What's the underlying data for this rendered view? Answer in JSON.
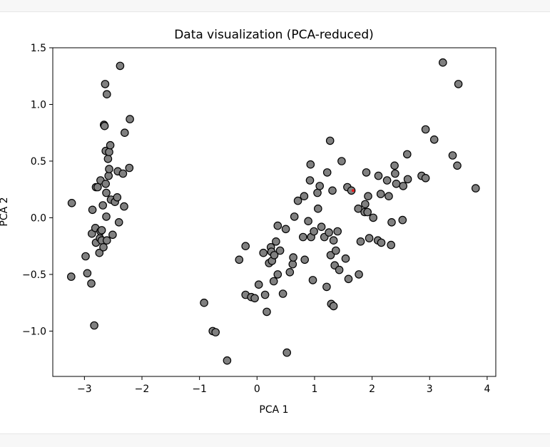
{
  "chart_data": {
    "type": "scatter",
    "title": "Data visualization (PCA-reduced)",
    "xlabel": "PCA 1",
    "ylabel": "PCA 2",
    "xlim": [
      -3.55,
      4.15
    ],
    "ylim": [
      -1.4,
      1.5
    ],
    "xticks": [
      "−3",
      "−2",
      "−1",
      "0",
      "1",
      "2",
      "3",
      "4"
    ],
    "xtick_values": [
      -3,
      -2,
      -1,
      0,
      1,
      2,
      3,
      4
    ],
    "yticks": [
      "−1.0",
      "−0.5",
      "0.0",
      "0.5",
      "1.0",
      "1.5"
    ],
    "ytick_values": [
      -1.0,
      -0.5,
      0.0,
      0.5,
      1.0,
      1.5
    ],
    "grid": false,
    "marker_fill": "#808080",
    "marker_edge": "#000000",
    "highlight_color": "#e41a1c",
    "highlight_point": [
      1.67,
      0.24
    ],
    "points": [
      [
        -3.22,
        0.13
      ],
      [
        -3.23,
        -0.52
      ],
      [
        -2.98,
        -0.34
      ],
      [
        -2.95,
        -0.49
      ],
      [
        -2.88,
        -0.58
      ],
      [
        -2.86,
        0.07
      ],
      [
        -2.83,
        -0.95
      ],
      [
        -2.87,
        -0.14
      ],
      [
        -2.81,
        -0.09
      ],
      [
        -2.8,
        0.27
      ],
      [
        -2.77,
        0.27
      ],
      [
        -2.8,
        -0.22
      ],
      [
        -2.74,
        -0.31
      ],
      [
        -2.73,
        -0.18
      ],
      [
        -2.72,
        -0.12
      ],
      [
        -2.72,
        0.33
      ],
      [
        -2.7,
        -0.2
      ],
      [
        -2.7,
        -0.11
      ],
      [
        -2.68,
        0.11
      ],
      [
        -2.67,
        -0.26
      ],
      [
        -2.66,
        0.82
      ],
      [
        -2.65,
        0.81
      ],
      [
        -2.64,
        1.18
      ],
      [
        -2.63,
        0.59
      ],
      [
        -2.63,
        0.3
      ],
      [
        -2.62,
        0.01
      ],
      [
        -2.62,
        0.22
      ],
      [
        -2.61,
        1.09
      ],
      [
        -2.61,
        -0.2
      ],
      [
        -2.59,
        0.52
      ],
      [
        -2.58,
        0.37
      ],
      [
        -2.57,
        0.58
      ],
      [
        -2.57,
        0.43
      ],
      [
        -2.55,
        0.64
      ],
      [
        -2.54,
        0.16
      ],
      [
        -2.51,
        -0.15
      ],
      [
        -2.47,
        0.14
      ],
      [
        -2.43,
        0.18
      ],
      [
        -2.42,
        0.41
      ],
      [
        -2.4,
        -0.04
      ],
      [
        -2.38,
        1.34
      ],
      [
        -2.33,
        0.39
      ],
      [
        -2.31,
        0.1
      ],
      [
        -2.3,
        0.75
      ],
      [
        -2.22,
        0.44
      ],
      [
        -2.21,
        0.87
      ],
      [
        -0.92,
        -0.75
      ],
      [
        -0.77,
        -1.0
      ],
      [
        -0.72,
        -1.01
      ],
      [
        -0.52,
        -1.26
      ],
      [
        -0.31,
        -0.37
      ],
      [
        -0.2,
        -0.68
      ],
      [
        -0.2,
        -0.25
      ],
      [
        -0.1,
        -0.7
      ],
      [
        -0.04,
        -0.71
      ],
      [
        0.03,
        -0.59
      ],
      [
        0.11,
        -0.31
      ],
      [
        0.14,
        -0.68
      ],
      [
        0.17,
        -0.83
      ],
      [
        0.21,
        -0.4
      ],
      [
        0.24,
        -0.26
      ],
      [
        0.25,
        -0.3
      ],
      [
        0.26,
        -0.38
      ],
      [
        0.29,
        -0.56
      ],
      [
        0.3,
        -0.33
      ],
      [
        0.33,
        -0.21
      ],
      [
        0.36,
        -0.5
      ],
      [
        0.36,
        -0.07
      ],
      [
        0.4,
        -0.29
      ],
      [
        0.45,
        -0.67
      ],
      [
        0.5,
        -0.1
      ],
      [
        0.52,
        -1.19
      ],
      [
        0.57,
        -0.48
      ],
      [
        0.62,
        -0.41
      ],
      [
        0.63,
        -0.35
      ],
      [
        0.65,
        0.01
      ],
      [
        0.71,
        0.15
      ],
      [
        0.8,
        -0.17
      ],
      [
        0.82,
        0.19
      ],
      [
        0.83,
        -0.37
      ],
      [
        0.89,
        -0.03
      ],
      [
        0.92,
        0.33
      ],
      [
        0.93,
        0.47
      ],
      [
        0.94,
        -0.17
      ],
      [
        0.97,
        -0.55
      ],
      [
        0.99,
        -0.12
      ],
      [
        1.05,
        0.22
      ],
      [
        1.06,
        0.08
      ],
      [
        1.09,
        0.28
      ],
      [
        1.12,
        -0.08
      ],
      [
        1.17,
        -0.17
      ],
      [
        1.21,
        -0.61
      ],
      [
        1.22,
        0.4
      ],
      [
        1.25,
        -0.13
      ],
      [
        1.27,
        0.68
      ],
      [
        1.28,
        -0.33
      ],
      [
        1.29,
        -0.76
      ],
      [
        1.31,
        0.24
      ],
      [
        1.33,
        -0.2
      ],
      [
        1.33,
        -0.78
      ],
      [
        1.35,
        -0.42
      ],
      [
        1.37,
        -0.29
      ],
      [
        1.4,
        -0.12
      ],
      [
        1.43,
        -0.46
      ],
      [
        1.47,
        0.5
      ],
      [
        1.54,
        -0.36
      ],
      [
        1.57,
        0.27
      ],
      [
        1.59,
        -0.54
      ],
      [
        1.64,
        0.24
      ],
      [
        1.76,
        0.08
      ],
      [
        1.77,
        -0.5
      ],
      [
        1.8,
        -0.21
      ],
      [
        1.87,
        0.05
      ],
      [
        1.88,
        0.12
      ],
      [
        1.9,
        0.4
      ],
      [
        1.92,
        0.05
      ],
      [
        1.93,
        0.19
      ],
      [
        1.95,
        -0.18
      ],
      [
        2.02,
        0.0
      ],
      [
        2.1,
        -0.2
      ],
      [
        2.11,
        0.37
      ],
      [
        2.15,
        0.21
      ],
      [
        2.16,
        -0.22
      ],
      [
        2.26,
        0.33
      ],
      [
        2.29,
        0.19
      ],
      [
        2.33,
        -0.24
      ],
      [
        2.34,
        -0.04
      ],
      [
        2.39,
        0.46
      ],
      [
        2.4,
        0.39
      ],
      [
        2.42,
        0.3
      ],
      [
        2.54,
        0.28
      ],
      [
        2.53,
        -0.02
      ],
      [
        2.61,
        0.56
      ],
      [
        2.62,
        0.34
      ],
      [
        2.86,
        0.37
      ],
      [
        2.93,
        0.35
      ],
      [
        2.93,
        0.78
      ],
      [
        3.08,
        0.69
      ],
      [
        3.23,
        1.37
      ],
      [
        3.4,
        0.55
      ],
      [
        3.48,
        0.46
      ],
      [
        3.5,
        1.18
      ],
      [
        3.8,
        0.26
      ]
    ]
  }
}
